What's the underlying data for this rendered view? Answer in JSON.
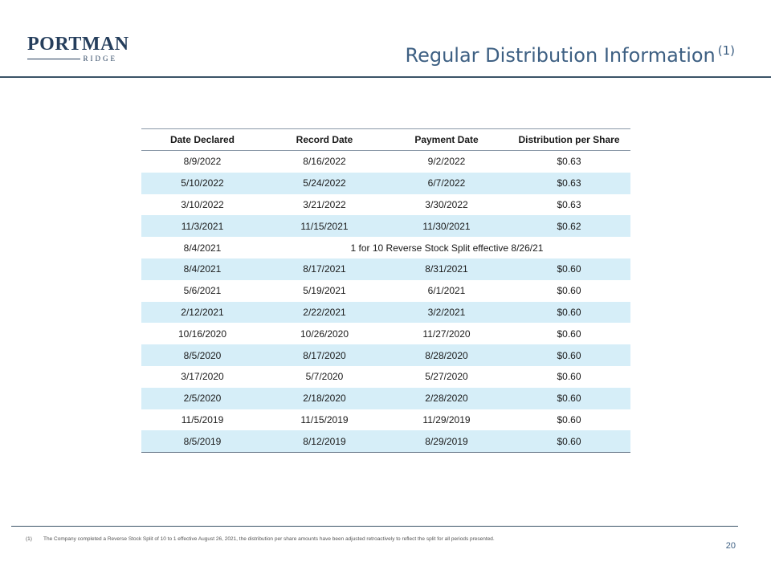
{
  "logo": {
    "main": "PORTMAN",
    "sub": "RIDGE"
  },
  "header": {
    "title": "Regular Distribution Information",
    "title_note": "(1)"
  },
  "table": {
    "columns": [
      "Date Declared",
      "Record Date",
      "Payment Date",
      "Distribution per Share"
    ],
    "rows": [
      {
        "declared": "8/9/2022",
        "record": "8/16/2022",
        "payment": "9/2/2022",
        "amount": "$0.63"
      },
      {
        "declared": "5/10/2022",
        "record": "5/24/2022",
        "payment": "6/7/2022",
        "amount": "$0.63"
      },
      {
        "declared": "3/10/2022",
        "record": "3/21/2022",
        "payment": "3/30/2022",
        "amount": "$0.63"
      },
      {
        "declared": "11/3/2021",
        "record": "11/15/2021",
        "payment": "11/30/2021",
        "amount": "$0.62"
      },
      {
        "declared": "8/4/2021",
        "note": "1 for 10 Reverse Stock Split effective 8/26/21"
      },
      {
        "declared": "8/4/2021",
        "record": "8/17/2021",
        "payment": "8/31/2021",
        "amount": "$0.60"
      },
      {
        "declared": "5/6/2021",
        "record": "5/19/2021",
        "payment": "6/1/2021",
        "amount": "$0.60"
      },
      {
        "declared": "2/12/2021",
        "record": "2/22/2021",
        "payment": "3/2/2021",
        "amount": "$0.60"
      },
      {
        "declared": "10/16/2020",
        "record": "10/26/2020",
        "payment": "11/27/2020",
        "amount": "$0.60"
      },
      {
        "declared": "8/5/2020",
        "record": "8/17/2020",
        "payment": "8/28/2020",
        "amount": "$0.60"
      },
      {
        "declared": "3/17/2020",
        "record": "5/7/2020",
        "payment": "5/27/2020",
        "amount": "$0.60"
      },
      {
        "declared": "2/5/2020",
        "record": "2/18/2020",
        "payment": "2/28/2020",
        "amount": "$0.60"
      },
      {
        "declared": "11/5/2019",
        "record": "11/15/2019",
        "payment": "11/29/2019",
        "amount": "$0.60"
      },
      {
        "declared": "8/5/2019",
        "record": "8/12/2019",
        "payment": "8/29/2019",
        "amount": "$0.60"
      }
    ]
  },
  "footnote": {
    "marker": "(1)",
    "text": "The Company completed a Reverse Stock Split of 10 to 1 effective August 26, 2021, the distribution per share amounts have been adjusted retroactively to reflect the split for all periods presented."
  },
  "page_number": "20",
  "colors": {
    "title": "#3e6083",
    "row_shade": "#d6eef8",
    "rule": "#3b5367"
  }
}
